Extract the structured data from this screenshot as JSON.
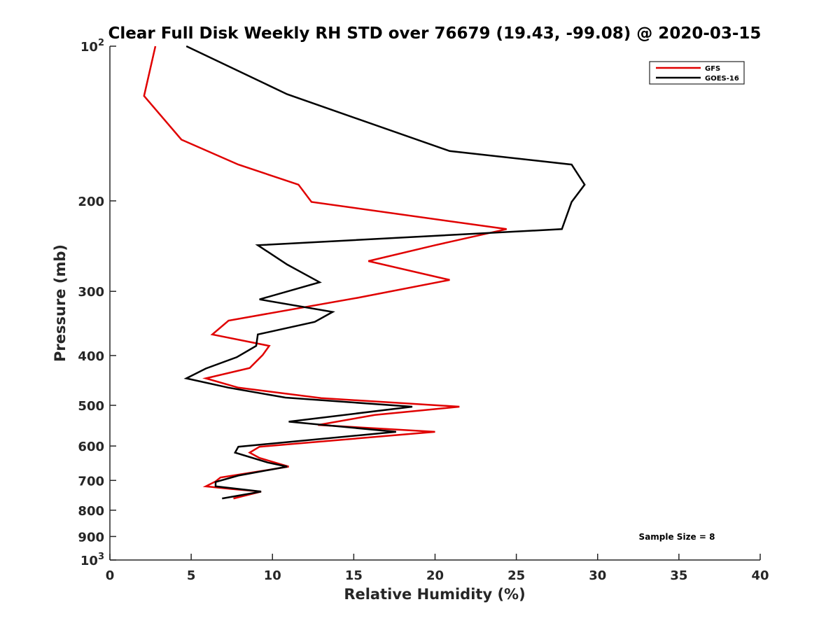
{
  "chart_data": {
    "type": "line",
    "title": "Clear Full Disk Weekly RH STD over 76679 (19.43, -99.08) @ 2020-03-15",
    "xlabel": "Relative Humidity (%)",
    "ylabel": "Pressure (mb)",
    "xlim": [
      0,
      40
    ],
    "ylim": [
      100,
      1000
    ],
    "y_scale": "log",
    "y_reversed": true,
    "x_ticks": [
      0,
      5,
      10,
      15,
      20,
      25,
      30,
      35,
      40
    ],
    "y_ticks": [
      {
        "value": 100,
        "label": "10",
        "sup": "2"
      },
      {
        "value": 200,
        "label": "200"
      },
      {
        "value": 300,
        "label": "300"
      },
      {
        "value": 400,
        "label": "400"
      },
      {
        "value": 500,
        "label": "500"
      },
      {
        "value": 600,
        "label": "600"
      },
      {
        "value": 700,
        "label": "700"
      },
      {
        "value": 800,
        "label": "800"
      },
      {
        "value": 900,
        "label": "900"
      },
      {
        "value": 1000,
        "label": "10",
        "sup": "3"
      }
    ],
    "grid": false,
    "legend_position": "top-right",
    "series": [
      {
        "name": "GFS",
        "color": "#e00000",
        "points": [
          [
            2.8,
            100
          ],
          [
            2.1,
            125
          ],
          [
            4.4,
            152
          ],
          [
            7.9,
            170
          ],
          [
            11.6,
            186
          ],
          [
            12.4,
            201
          ],
          [
            24.4,
            227
          ],
          [
            20.0,
            244
          ],
          [
            15.9,
            262
          ],
          [
            20.9,
            285
          ],
          [
            15.2,
            309
          ],
          [
            7.3,
            342
          ],
          [
            6.3,
            364
          ],
          [
            9.8,
            383
          ],
          [
            9.4,
            399
          ],
          [
            8.6,
            423
          ],
          [
            5.9,
            443
          ],
          [
            7.9,
            462
          ],
          [
            13.0,
            484
          ],
          [
            21.5,
            503
          ],
          [
            16.3,
            522
          ],
          [
            12.8,
            546
          ],
          [
            20.0,
            563
          ],
          [
            9.2,
            602
          ],
          [
            8.6,
            618
          ],
          [
            9.2,
            633
          ],
          [
            11.0,
            658
          ],
          [
            6.8,
            691
          ],
          [
            6.5,
            703
          ],
          [
            5.9,
            719
          ],
          [
            7.4,
            727
          ],
          [
            9.3,
            736
          ],
          [
            7.6,
            759
          ]
        ]
      },
      {
        "name": "GOES-16",
        "color": "#000000",
        "points": [
          [
            4.7,
            100
          ],
          [
            10.9,
            124
          ],
          [
            20.9,
            160
          ],
          [
            28.4,
            170
          ],
          [
            29.2,
            186
          ],
          [
            28.4,
            201
          ],
          [
            27.8,
            227
          ],
          [
            9.1,
            244
          ],
          [
            10.9,
            266
          ],
          [
            12.9,
            288
          ],
          [
            9.2,
            311
          ],
          [
            13.7,
            329
          ],
          [
            12.6,
            344
          ],
          [
            9.1,
            364
          ],
          [
            9.0,
            383
          ],
          [
            7.8,
            403
          ],
          [
            5.9,
            424
          ],
          [
            4.7,
            443
          ],
          [
            7.3,
            462
          ],
          [
            10.8,
            483
          ],
          [
            18.6,
            503
          ],
          [
            11.0,
            538
          ],
          [
            17.6,
            563
          ],
          [
            7.9,
            602
          ],
          [
            7.7,
            618
          ],
          [
            9.7,
            646
          ],
          [
            10.9,
            658
          ],
          [
            7.9,
            685
          ],
          [
            6.5,
            705
          ],
          [
            6.5,
            719
          ],
          [
            9.3,
            736
          ],
          [
            6.9,
            759
          ]
        ]
      }
    ],
    "annotation": "Sample Size = 8"
  }
}
